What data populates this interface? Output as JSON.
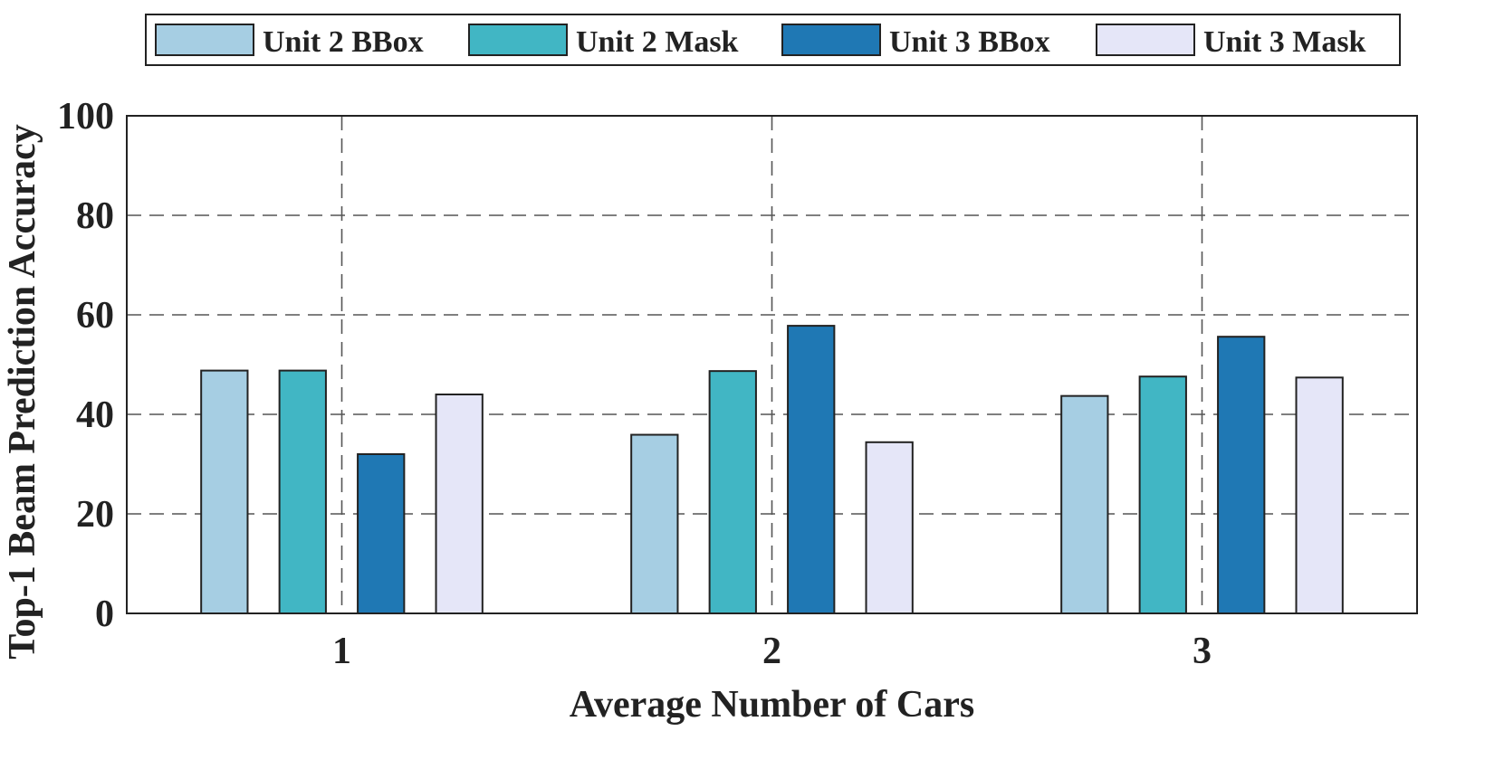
{
  "chart_data": {
    "type": "bar",
    "title": "",
    "xlabel": "Average Number of Cars",
    "ylabel": "Top-1 Beam Prediction Accuracy",
    "categories": [
      "1",
      "2",
      "3"
    ],
    "ylim": [
      0,
      100
    ],
    "yticks": [
      "0",
      "20",
      "40",
      "60",
      "80",
      "100"
    ],
    "grid": true,
    "legend_position": "top",
    "series": [
      {
        "name": "Unit 2 BBox",
        "color": "#a6cee3",
        "values": [
          48.8,
          35.9,
          43.7
        ]
      },
      {
        "name": "Unit 2 Mask",
        "color": "#41b6c4",
        "values": [
          48.8,
          48.7,
          47.6
        ]
      },
      {
        "name": "Unit 3 BBox",
        "color": "#1f78b4",
        "values": [
          32.0,
          57.8,
          55.6
        ]
      },
      {
        "name": "Unit 3 Mask",
        "color": "#e5e6f8",
        "values": [
          44.0,
          34.4,
          47.4
        ]
      }
    ]
  }
}
